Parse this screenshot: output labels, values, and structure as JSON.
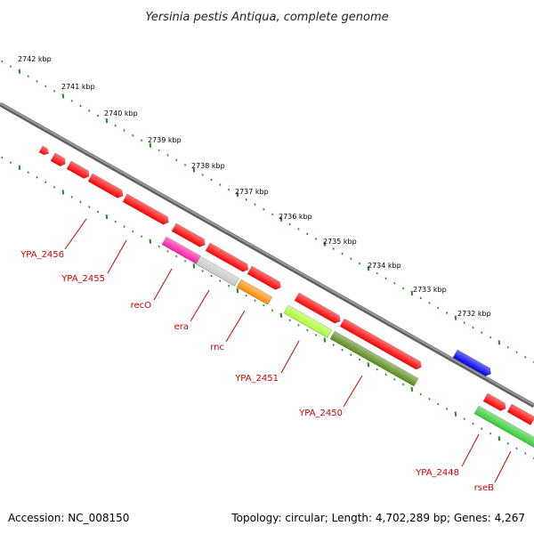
{
  "title": "Yersinia pestis Antiqua, complete genome",
  "colors": {
    "background": "#ffffff",
    "backbone": "#808080",
    "tick": "#1e8a1e",
    "label_red": "#cc0000",
    "gene_red": "#ff0000",
    "gene_magenta": "#ff1aa6",
    "gene_grey": "#c8c8c8",
    "gene_orange": "#ff8c00",
    "gene_lime": "#aaff33",
    "gene_olive": "#5a8a1a",
    "gene_blue": "#0000ee",
    "gene_green": "#33cc33"
  },
  "scale": {
    "unit": "kbp",
    "labels": [
      "2742 kbp",
      "2741 kbp",
      "2740 kbp",
      "2739 kbp",
      "2738 kbp",
      "2737 kbp",
      "2736 kbp",
      "2735 kbp",
      "2734 kbp",
      "2733 kbp",
      "2732 kbp"
    ]
  },
  "genes": [
    {
      "name": "",
      "color": "gene_red"
    },
    {
      "name": "",
      "color": "gene_red"
    },
    {
      "name": "",
      "color": "gene_red"
    },
    {
      "name": "YPA_2456",
      "color": "gene_red"
    },
    {
      "name": "YPA_2455",
      "color": "gene_red"
    },
    {
      "name": "",
      "color": "gene_red"
    },
    {
      "name": "recO",
      "color": "gene_magenta"
    },
    {
      "name": "",
      "color": "gene_red"
    },
    {
      "name": "era",
      "color": "gene_grey"
    },
    {
      "name": "rnc",
      "color": "gene_orange"
    },
    {
      "name": "",
      "color": "gene_red"
    },
    {
      "name": "",
      "color": "gene_red"
    },
    {
      "name": "",
      "color": "gene_red"
    },
    {
      "name": "YPA_2451",
      "color": "gene_lime"
    },
    {
      "name": "YPA_2450",
      "color": "gene_olive"
    },
    {
      "name": "",
      "color": "gene_blue"
    },
    {
      "name": "",
      "color": "gene_red"
    },
    {
      "name": "",
      "color": "gene_red"
    },
    {
      "name": "YPA_2448",
      "color": "gene_green"
    },
    {
      "name": "rseB",
      "color": "gene_red"
    }
  ],
  "footer": {
    "accession": "Accession: NC_008150",
    "topology": "Topology: circular; Length: 4,702,289 bp; Genes: 4,267"
  }
}
